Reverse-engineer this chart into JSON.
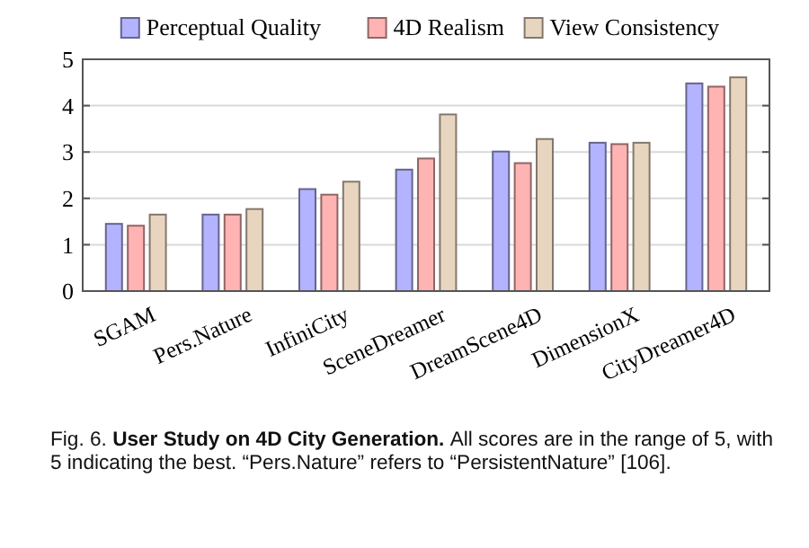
{
  "chart_data": {
    "type": "bar",
    "title": "User Study on 4D City Generation.",
    "annotations": [
      "Fig. 6.",
      "All scores are in the range of 5, with 5 indicating the best. “Pers.Nature” refers to “PersistentNature” [106]."
    ],
    "categories": [
      "SGAM",
      "Pers.Nature",
      "InfiniCity",
      "SceneDreamer",
      "DreamScene4D",
      "DimensionX",
      "CityDreamer4D"
    ],
    "series": [
      {
        "name": "Perceptual Quality",
        "color": "#b3b3ff",
        "values": [
          1.45,
          1.65,
          2.2,
          2.62,
          3.01,
          3.2,
          4.48
        ]
      },
      {
        "name": "4D Realism",
        "color": "#ffb3b3",
        "values": [
          1.41,
          1.65,
          2.08,
          2.86,
          2.76,
          3.17,
          4.41
        ]
      },
      {
        "name": "View Consistency",
        "color": "#e8d5c0",
        "values": [
          1.65,
          1.77,
          2.36,
          3.81,
          3.28,
          3.2,
          4.61
        ]
      }
    ],
    "ylim": [
      0,
      5
    ],
    "yticks": [
      0,
      1,
      2,
      3,
      4,
      5
    ],
    "grid": "y",
    "legend": "top"
  }
}
